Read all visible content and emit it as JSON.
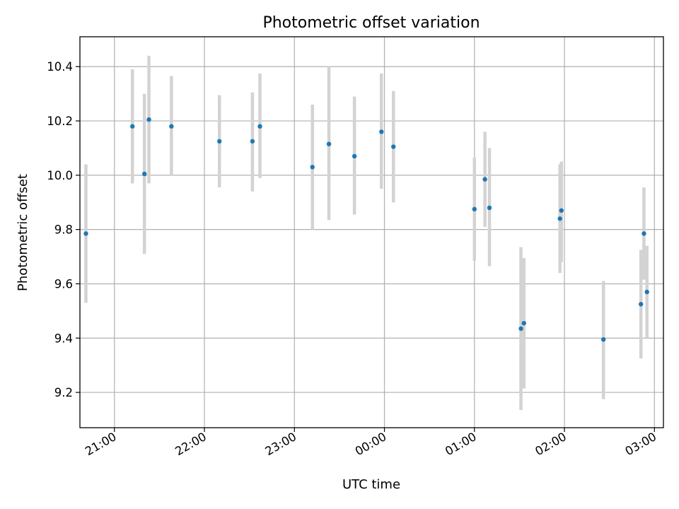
{
  "chart_data": {
    "type": "scatter",
    "title": "Photometric offset variation",
    "xlabel": "UTC time",
    "ylabel": "Photometric offset",
    "grid": true,
    "x_unit": "UTC time (HH:MM, evening through early morning)",
    "xlim": [
      "20:37",
      "03:06"
    ],
    "ylim": [
      9.07,
      10.51
    ],
    "x_ticks": [
      "21:00",
      "22:00",
      "23:00",
      "00:00",
      "01:00",
      "02:00",
      "03:00"
    ],
    "y_ticks": [
      "9.2",
      "9.4",
      "9.6",
      "9.8",
      "10.0",
      "10.2",
      "10.4"
    ],
    "marker_color": "#1f77b4",
    "errorbar_color": "#d3d3d3",
    "points": [
      {
        "x": "20:41",
        "y": 9.785,
        "lo": 9.53,
        "hi": 10.04
      },
      {
        "x": "21:12",
        "y": 10.18,
        "lo": 9.97,
        "hi": 10.39
      },
      {
        "x": "21:20",
        "y": 10.005,
        "lo": 9.71,
        "hi": 10.3
      },
      {
        "x": "21:23",
        "y": 10.205,
        "lo": 9.97,
        "hi": 10.44
      },
      {
        "x": "21:38",
        "y": 10.18,
        "lo": 10.0,
        "hi": 10.365
      },
      {
        "x": "22:10",
        "y": 10.125,
        "lo": 9.955,
        "hi": 10.295
      },
      {
        "x": "22:32",
        "y": 10.125,
        "lo": 9.94,
        "hi": 10.305
      },
      {
        "x": "22:37",
        "y": 10.18,
        "lo": 9.99,
        "hi": 10.375
      },
      {
        "x": "23:12",
        "y": 10.03,
        "lo": 9.8,
        "hi": 10.26
      },
      {
        "x": "23:23",
        "y": 10.115,
        "lo": 9.835,
        "hi": 10.4
      },
      {
        "x": "23:40",
        "y": 10.07,
        "lo": 9.855,
        "hi": 10.29
      },
      {
        "x": "23:58",
        "y": 10.16,
        "lo": 9.95,
        "hi": 10.375
      },
      {
        "x": "00:06",
        "y": 10.105,
        "lo": 9.9,
        "hi": 10.31
      },
      {
        "x": "01:00",
        "y": 9.875,
        "lo": 9.685,
        "hi": 10.065
      },
      {
        "x": "01:07",
        "y": 9.985,
        "lo": 9.81,
        "hi": 10.16
      },
      {
        "x": "01:10",
        "y": 9.88,
        "lo": 9.665,
        "hi": 10.1
      },
      {
        "x": "01:31",
        "y": 9.435,
        "lo": 9.135,
        "hi": 9.735
      },
      {
        "x": "01:33",
        "y": 9.455,
        "lo": 9.215,
        "hi": 9.695
      },
      {
        "x": "01:57",
        "y": 9.84,
        "lo": 9.64,
        "hi": 10.04
      },
      {
        "x": "01:58",
        "y": 9.87,
        "lo": 9.68,
        "hi": 10.05
      },
      {
        "x": "02:26",
        "y": 9.395,
        "lo": 9.175,
        "hi": 9.61
      },
      {
        "x": "02:51",
        "y": 9.525,
        "lo": 9.325,
        "hi": 9.725
      },
      {
        "x": "02:53",
        "y": 9.785,
        "lo": 9.615,
        "hi": 9.955
      },
      {
        "x": "02:55",
        "y": 9.57,
        "lo": 9.4,
        "hi": 9.74
      }
    ]
  }
}
